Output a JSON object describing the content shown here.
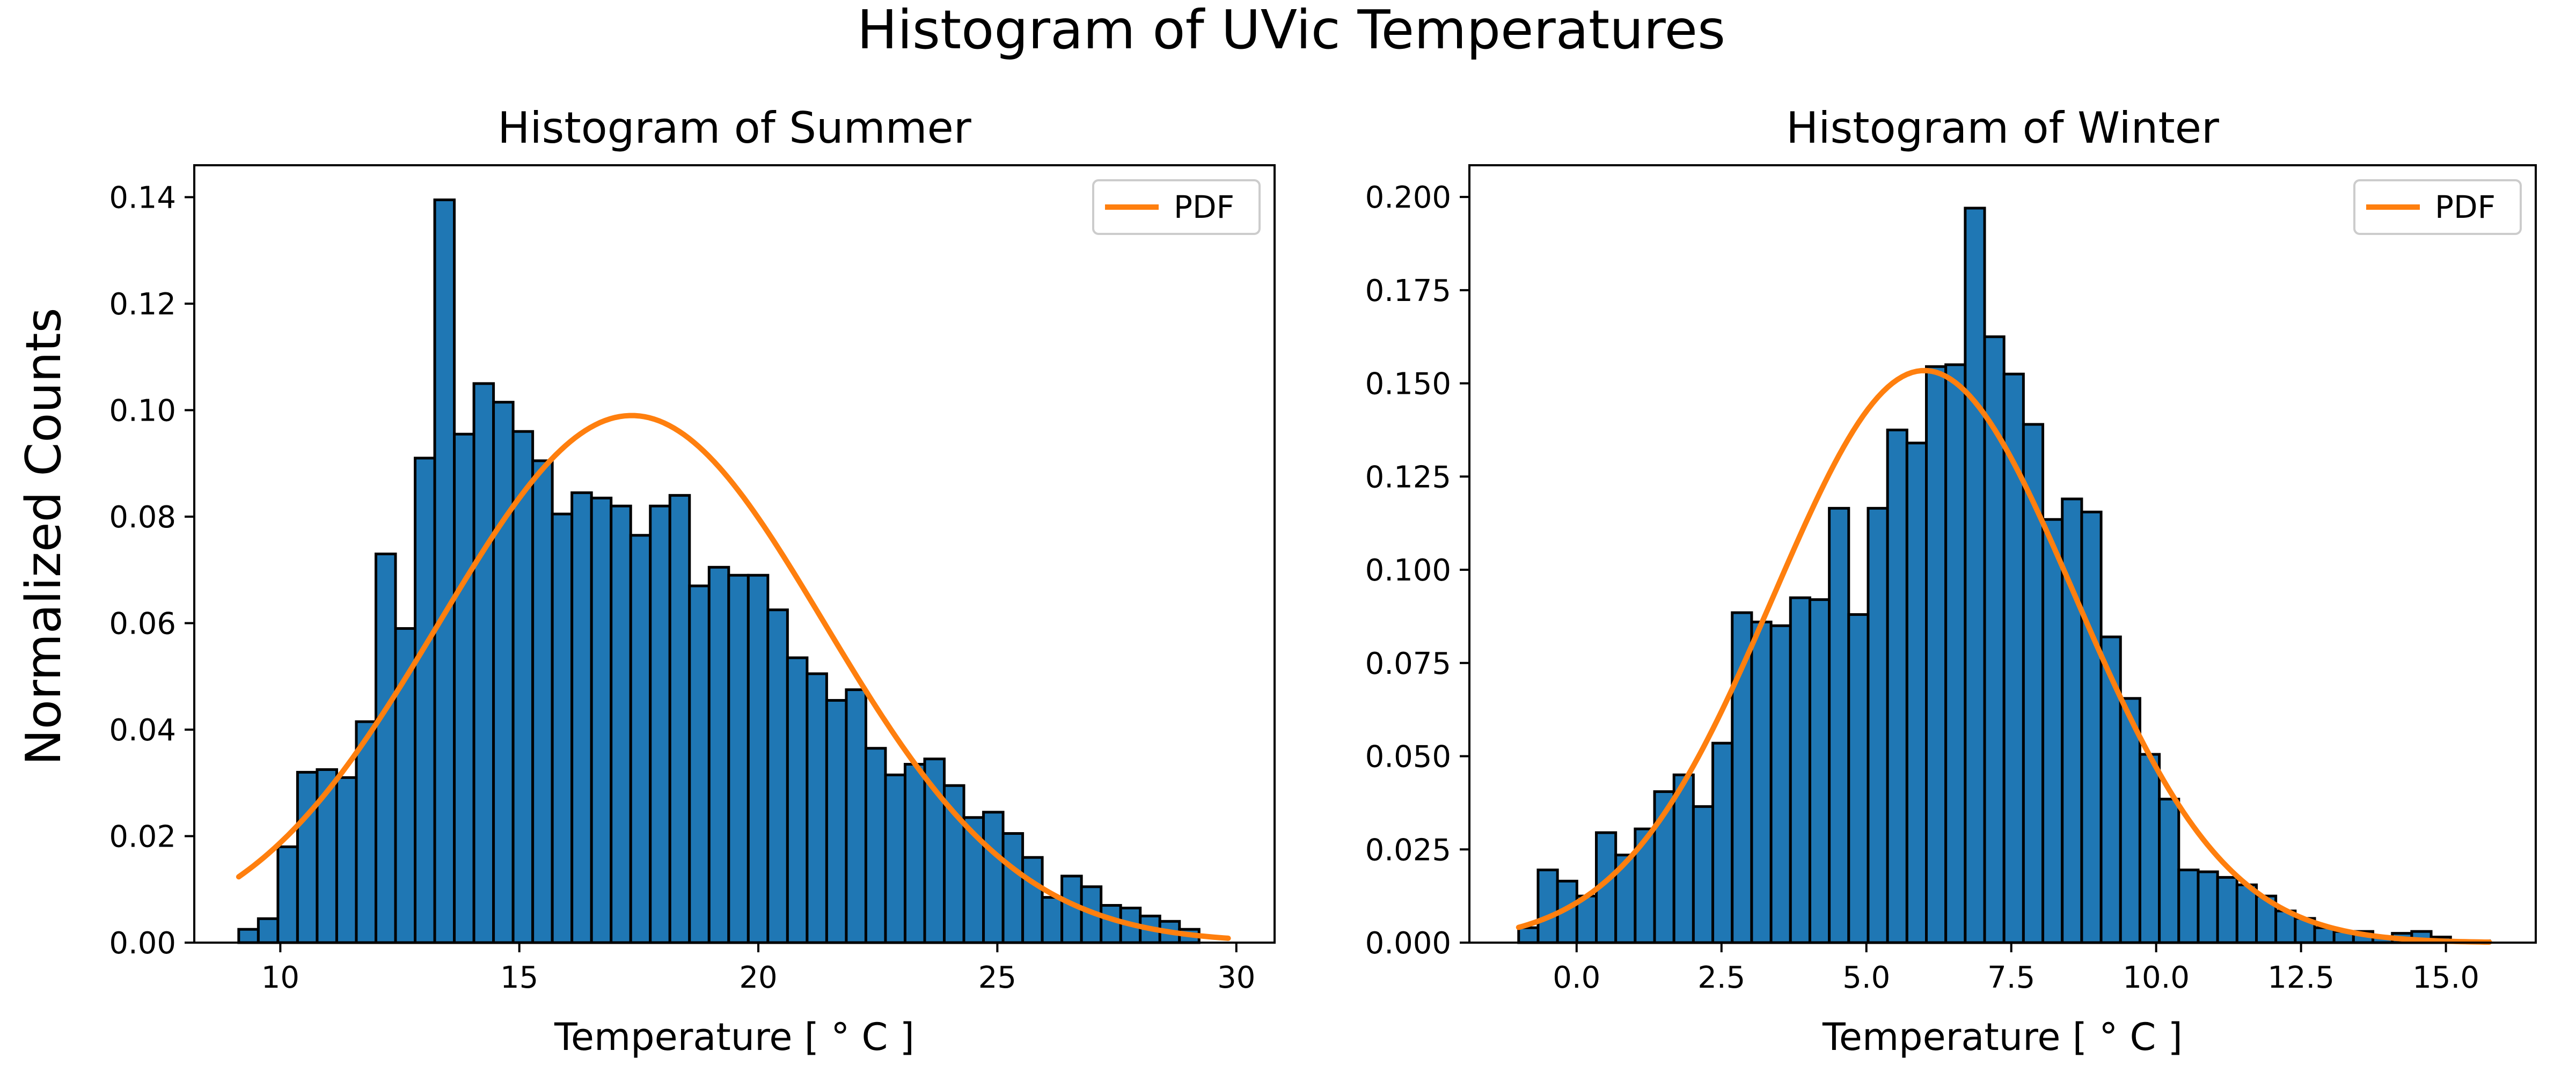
{
  "figure": {
    "suptitle": "Histogram of UVic Temperatures",
    "shared_ylabel": "Normalized Counts"
  },
  "colors": {
    "bar": "#1f77b4",
    "bar_edge": "#000000",
    "pdf_line": "#ff7f0e"
  },
  "chart_data": [
    {
      "type": "bar",
      "title": "Histogram of Summer",
      "xlabel": "Temperature [$^\\circ C$]",
      "xlabel_display": "Temperature [ ° C ]",
      "ylabel": "Normalized Counts",
      "xlim": [
        8.2,
        30.8
      ],
      "ylim": [
        0.0,
        0.146
      ],
      "xticks": [
        10,
        15,
        20,
        25,
        30
      ],
      "yticks": [
        0.0,
        0.02,
        0.04,
        0.06,
        0.08,
        0.1,
        0.12,
        0.14
      ],
      "ytick_decimals": 2,
      "xtick_decimals": 0,
      "legend": {
        "entries": [
          "PDF"
        ],
        "placement": "upper right"
      },
      "bin_start": 9.13,
      "bin_width": 0.41,
      "values": [
        0.0025,
        0.0045,
        0.018,
        0.032,
        0.0325,
        0.031,
        0.0415,
        0.073,
        0.059,
        0.091,
        0.1395,
        0.0955,
        0.105,
        0.1015,
        0.096,
        0.0905,
        0.0805,
        0.0845,
        0.0835,
        0.082,
        0.0765,
        0.082,
        0.084,
        0.067,
        0.0705,
        0.069,
        0.069,
        0.0625,
        0.0535,
        0.0505,
        0.0455,
        0.0475,
        0.0365,
        0.0315,
        0.0335,
        0.0345,
        0.0295,
        0.0235,
        0.0245,
        0.0205,
        0.016,
        0.0085,
        0.0125,
        0.0105,
        0.007,
        0.0065,
        0.005,
        0.004,
        0.0025,
        0.0
      ],
      "pdf": {
        "name": "PDF",
        "mean": 17.35,
        "std": 4.03,
        "x_range": [
          9.13,
          29.83
        ]
      }
    },
    {
      "type": "bar",
      "title": "Histogram of Winter",
      "xlabel": "Temperature [$^\\circ C$]",
      "xlabel_display": "Temperature [ ° C ]",
      "ylabel": "",
      "xlim": [
        -1.85,
        16.55
      ],
      "ylim": [
        0.0,
        0.2085
      ],
      "xticks": [
        0.0,
        2.5,
        5.0,
        7.5,
        10.0,
        12.5,
        15.0
      ],
      "yticks": [
        0.0,
        0.025,
        0.05,
        0.075,
        0.1,
        0.125,
        0.15,
        0.175,
        0.2
      ],
      "ytick_decimals": 3,
      "xtick_decimals": 1,
      "legend": {
        "entries": [
          "PDF"
        ],
        "placement": "upper right"
      },
      "bin_start": -1.0,
      "bin_width": 0.335,
      "values": [
        0.004,
        0.0195,
        0.0165,
        0.0125,
        0.0295,
        0.0235,
        0.0305,
        0.0405,
        0.045,
        0.0365,
        0.0535,
        0.0885,
        0.086,
        0.085,
        0.0925,
        0.092,
        0.1165,
        0.088,
        0.1165,
        0.1375,
        0.134,
        0.1545,
        0.155,
        0.197,
        0.1625,
        0.1525,
        0.139,
        0.1135,
        0.119,
        0.1155,
        0.082,
        0.0655,
        0.0505,
        0.0385,
        0.0195,
        0.019,
        0.0175,
        0.0155,
        0.0125,
        0.0085,
        0.0065,
        0.004,
        0.003,
        0.003,
        0.0015,
        0.0025,
        0.003,
        0.0015,
        0.0005,
        0.0005
      ],
      "pdf": {
        "name": "PDF",
        "mean": 6.0,
        "std": 2.6,
        "x_range": [
          -1.0,
          15.75
        ]
      }
    }
  ]
}
